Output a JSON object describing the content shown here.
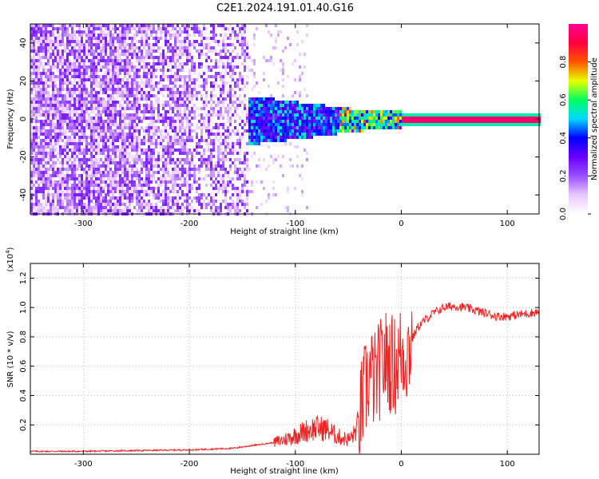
{
  "figure_title": "C2E1.2024.191.01.40.G16",
  "colors": {
    "snr_line": "#ee2222",
    "colormap": [
      "#ffffff",
      "#e8c8ff",
      "#9a4dff",
      "#6a00ff",
      "#0000ff",
      "#00d8ff",
      "#00ff60",
      "#e8ff00",
      "#ff5500",
      "#ff0040",
      "#ff0090"
    ]
  },
  "chart_data": [
    {
      "type": "heatmap",
      "title": "",
      "xlabel": "Height of straight line (km)",
      "ylabel": "Frequency (Hz)",
      "xlim": [
        -350,
        130
      ],
      "ylim": [
        -50,
        50
      ],
      "xticks": [
        -300,
        -200,
        -100,
        0,
        100
      ],
      "yticks": [
        -40,
        -20,
        0,
        20,
        40
      ],
      "colorbar": {
        "label": "Normalized spectral amplitude",
        "range": [
          0,
          1
        ],
        "ticks": [
          "0.0",
          "0.2",
          "0.4",
          "0.6",
          "0.8"
        ]
      },
      "features": [
        {
          "description": "diffuse noise across frequencies",
          "x_range": [
            -350,
            -140
          ],
          "amplitude": 0.1
        },
        {
          "description": "narrowing signal band near 0 Hz",
          "x_range": [
            -150,
            0
          ],
          "amplitude": 0.35
        },
        {
          "description": "strong line at 0 Hz",
          "x_range": [
            0,
            130
          ],
          "amplitude": 0.95
        }
      ]
    },
    {
      "type": "line",
      "title": "",
      "xlabel": "Height of straight line (km)",
      "ylabel": "SNR (10 * v/v)",
      "scale_label": "(x10",
      "scale_exp": "4",
      "scale_close": ")",
      "xlim": [
        -350,
        130
      ],
      "ylim": [
        0,
        1.3
      ],
      "xticks": [
        -300,
        -200,
        -100,
        0,
        100
      ],
      "yticks": [
        "0.2",
        "0.4",
        "0.6",
        "0.8",
        "1.0",
        "1.2"
      ],
      "series": [
        {
          "x": [
            -350,
            -300,
            -250,
            -200,
            -160,
            -140,
            -120,
            -110,
            -100,
            -90,
            -80,
            -70,
            -60,
            -50,
            -45,
            -40,
            -35,
            -30,
            -25,
            -20,
            -15,
            -10,
            -5,
            0,
            5,
            10,
            15,
            20,
            25,
            30,
            40,
            50,
            60,
            70,
            80,
            90,
            100,
            110,
            120,
            130
          ],
          "y": [
            0.02,
            0.02,
            0.025,
            0.03,
            0.04,
            0.06,
            0.08,
            0.1,
            0.13,
            0.16,
            0.18,
            0.17,
            0.12,
            0.1,
            0.13,
            0.22,
            0.4,
            0.55,
            0.5,
            0.58,
            0.65,
            0.62,
            0.6,
            0.7,
            0.68,
            0.78,
            0.86,
            0.9,
            0.93,
            0.96,
            1.0,
            1.01,
            1.0,
            0.98,
            0.96,
            0.94,
            0.94,
            0.95,
            0.96,
            0.97
          ]
        }
      ]
    }
  ]
}
